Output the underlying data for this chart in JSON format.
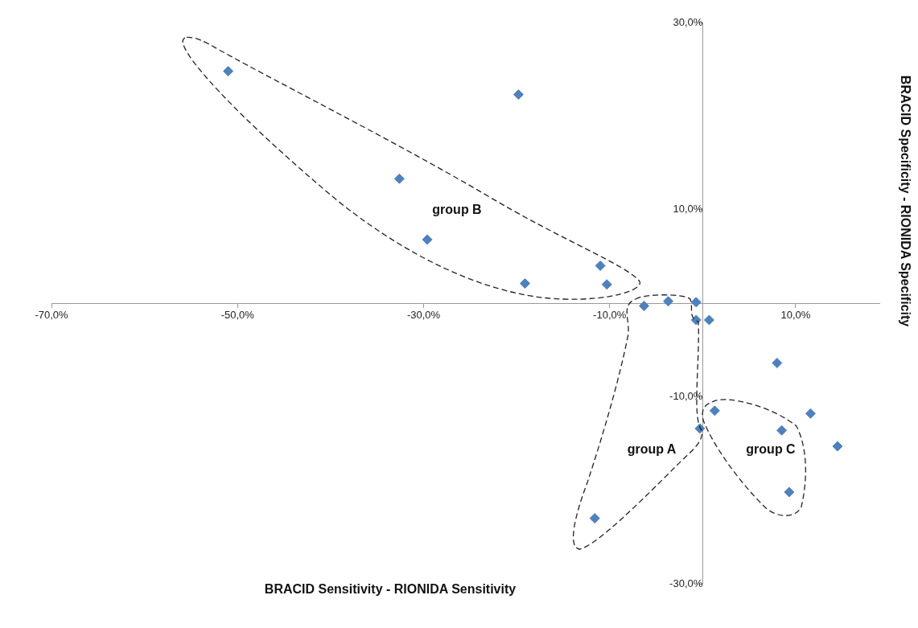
{
  "chart_data": {
    "type": "scatter",
    "xlabel": "BRACID Sensitivity - RIONIDA Sensitivity",
    "ylabel": "BRACID Specificity - RIONIDA Specificity",
    "x": [
      -51.0,
      -19.8,
      -32.6,
      -29.6,
      -11.0,
      -19.1,
      -10.3,
      -6.3,
      -3.7,
      -0.7,
      -0.7,
      0.7,
      8.0,
      1.3,
      11.6,
      -0.3,
      8.5,
      14.5,
      9.3,
      -11.6
    ],
    "values": [
      24.8,
      22.3,
      13.3,
      6.8,
      4.0,
      2.1,
      2.0,
      -0.3,
      0.2,
      0.1,
      -1.8,
      -1.8,
      -6.4,
      -11.5,
      -11.8,
      -13.4,
      -13.6,
      -15.3,
      -20.2,
      -23.0
    ],
    "color": "#4f81bd",
    "marker": "diamond",
    "grid": false,
    "legend": false,
    "xlim": [
      -70,
      19
    ],
    "xticks": [
      {
        "value": -70,
        "label": "-70,0%"
      },
      {
        "value": -50,
        "label": "-50,0%"
      },
      {
        "value": -30,
        "label": "-30,0%"
      },
      {
        "value": -10,
        "label": "-10,0%"
      },
      {
        "value": 10,
        "label": "10,0%"
      }
    ],
    "ylim": [
      -30,
      30
    ],
    "yticks": [
      {
        "value": -30,
        "label": "-30,0%"
      },
      {
        "value": -10,
        "label": "-10,0%"
      },
      {
        "value": 10,
        "label": "10,0%"
      },
      {
        "value": 30,
        "label": "30,0%"
      }
    ],
    "annotations": [
      "group B",
      "group A",
      "group C"
    ]
  }
}
